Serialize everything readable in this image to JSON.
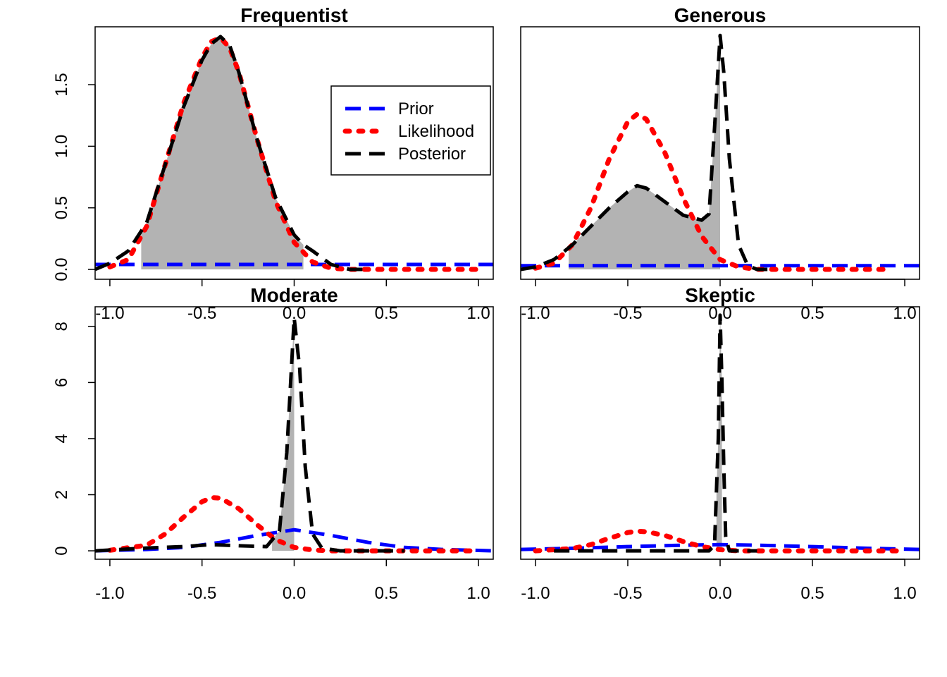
{
  "legend": {
    "prior_label": "Prior",
    "likelihood_label": "Likelihood",
    "posterior_label": "Posterior"
  },
  "colors": {
    "prior": "#0000ff",
    "likelihood": "#ff0000",
    "posterior": "#000000",
    "shade": "#b3b3b3"
  },
  "chart_data": [
    {
      "type": "line",
      "title": "Frequentist",
      "xlim": [
        -1.08,
        1.08
      ],
      "ylim": [
        -0.08,
        1.97
      ],
      "xticks": [
        -1.0,
        -0.5,
        0.0,
        0.5,
        1.0
      ],
      "xtick_labels": [
        "-1.0",
        "-0.5",
        "0.0",
        "0.5",
        "1.0"
      ],
      "yticks": [
        0.0,
        0.5,
        1.0,
        1.5
      ],
      "ytick_labels": [
        "0.0",
        "0.5",
        "1.0",
        "1.5"
      ],
      "legend": "top-right",
      "shade_interval": [
        -0.83,
        0.05
      ],
      "series": [
        {
          "name": "Prior",
          "x": [
            -1.08,
            1.08
          ],
          "y": [
            0.04,
            0.04
          ]
        },
        {
          "name": "Likelihood",
          "x": [
            -1.0,
            -0.9,
            -0.8,
            -0.7,
            -0.6,
            -0.5,
            -0.45,
            -0.4,
            -0.35,
            -0.3,
            -0.2,
            -0.1,
            0.0,
            0.1,
            0.2,
            0.3,
            0.5,
            0.7,
            0.9,
            1.0
          ],
          "y": [
            0.02,
            0.08,
            0.35,
            0.85,
            1.35,
            1.72,
            1.85,
            1.88,
            1.8,
            1.6,
            1.05,
            0.55,
            0.22,
            0.06,
            0.01,
            0.0,
            0.0,
            0.0,
            0.0,
            0.0
          ]
        },
        {
          "name": "Posterior",
          "x": [
            -1.08,
            -1.0,
            -0.9,
            -0.8,
            -0.7,
            -0.6,
            -0.5,
            -0.45,
            -0.4,
            -0.35,
            -0.3,
            -0.2,
            -0.1,
            0.0,
            0.05,
            0.1,
            0.2,
            0.3,
            0.4
          ],
          "y": [
            0.0,
            0.05,
            0.15,
            0.38,
            0.85,
            1.32,
            1.7,
            1.83,
            1.89,
            1.82,
            1.6,
            1.05,
            0.58,
            0.28,
            0.2,
            0.15,
            0.04,
            0.0,
            0.0
          ]
        }
      ]
    },
    {
      "type": "line",
      "title": "Generous",
      "xlim": [
        -1.08,
        1.08
      ],
      "ylim": [
        -0.08,
        1.97
      ],
      "xticks": [
        -1.0,
        -0.5,
        0.0,
        0.5,
        1.0
      ],
      "xtick_labels": [
        "-1.0",
        "-0.5",
        "0.0",
        "0.5",
        "1.0"
      ],
      "yticks": [],
      "ytick_labels": [],
      "shade_interval": [
        -0.82,
        0.0
      ],
      "series": [
        {
          "name": "Prior",
          "x": [
            -1.08,
            1.08
          ],
          "y": [
            0.03,
            0.03
          ]
        },
        {
          "name": "Likelihood",
          "x": [
            -1.0,
            -0.9,
            -0.8,
            -0.7,
            -0.6,
            -0.5,
            -0.45,
            -0.4,
            -0.3,
            -0.2,
            -0.1,
            0.0,
            0.1,
            0.2,
            0.3,
            0.5,
            0.7,
            0.9
          ],
          "y": [
            0.01,
            0.05,
            0.2,
            0.5,
            0.9,
            1.2,
            1.26,
            1.22,
            0.95,
            0.58,
            0.27,
            0.08,
            0.02,
            0.0,
            0.0,
            0.0,
            0.0,
            0.0
          ]
        },
        {
          "name": "Posterior",
          "x": [
            -1.08,
            -1.0,
            -0.9,
            -0.8,
            -0.7,
            -0.6,
            -0.5,
            -0.45,
            -0.4,
            -0.3,
            -0.2,
            -0.1,
            -0.06,
            -0.03,
            0.0,
            0.02,
            0.05,
            0.1,
            0.15,
            0.2,
            0.3
          ],
          "y": [
            0.0,
            0.02,
            0.08,
            0.2,
            0.35,
            0.5,
            0.63,
            0.68,
            0.66,
            0.55,
            0.44,
            0.4,
            0.45,
            1.15,
            1.9,
            1.6,
            0.9,
            0.2,
            0.03,
            0.0,
            0.0
          ]
        }
      ]
    },
    {
      "type": "line",
      "title": "Moderate",
      "xlim": [
        -1.08,
        1.08
      ],
      "ylim": [
        -0.3,
        8.7
      ],
      "xticks": [
        -1.0,
        -0.5,
        0.0,
        0.5,
        1.0
      ],
      "xtick_labels": [
        "-1.0",
        "-0.5",
        "0.0",
        "0.5",
        "1.0"
      ],
      "yticks": [
        0,
        2,
        4,
        6,
        8
      ],
      "ytick_labels": [
        "0",
        "2",
        "4",
        "6",
        "8"
      ],
      "shade_interval": [
        -0.12,
        0.0
      ],
      "series": [
        {
          "name": "Prior",
          "x": [
            -1.08,
            -0.8,
            -0.6,
            -0.4,
            -0.2,
            0.0,
            0.2,
            0.4,
            0.6,
            0.8,
            1.08
          ],
          "y": [
            0.0,
            0.05,
            0.12,
            0.3,
            0.55,
            0.75,
            0.55,
            0.3,
            0.12,
            0.05,
            0.0
          ]
        },
        {
          "name": "Likelihood",
          "x": [
            -1.0,
            -0.8,
            -0.7,
            -0.6,
            -0.5,
            -0.45,
            -0.4,
            -0.3,
            -0.2,
            -0.1,
            0.0,
            0.1,
            0.2,
            0.3,
            0.5,
            0.7,
            0.9,
            1.0
          ],
          "y": [
            0.02,
            0.2,
            0.6,
            1.2,
            1.75,
            1.9,
            1.88,
            1.5,
            0.92,
            0.4,
            0.12,
            0.03,
            0.0,
            0.0,
            0.0,
            0.0,
            0.0,
            0.0
          ]
        },
        {
          "name": "Posterior",
          "x": [
            -1.08,
            -0.8,
            -0.6,
            -0.45,
            -0.3,
            -0.15,
            -0.08,
            -0.04,
            0.0,
            0.03,
            0.06,
            0.1,
            0.15,
            0.25,
            0.4,
            0.6
          ],
          "y": [
            0.0,
            0.1,
            0.15,
            0.22,
            0.18,
            0.15,
            0.7,
            3.5,
            8.3,
            6.5,
            3.0,
            0.6,
            0.1,
            0.0,
            0.0,
            0.0
          ]
        }
      ]
    },
    {
      "type": "line",
      "title": "Skeptic",
      "xlim": [
        -1.08,
        1.08
      ],
      "ylim": [
        -0.3,
        8.7
      ],
      "xticks": [
        -1.0,
        -0.5,
        0.0,
        0.5,
        1.0
      ],
      "xtick_labels": [
        "-1.0",
        "-0.5",
        "0.0",
        "0.5",
        "1.0"
      ],
      "yticks": [],
      "ytick_labels": [],
      "shade_interval": [
        -0.02,
        0.01
      ],
      "series": [
        {
          "name": "Prior",
          "x": [
            -1.08,
            -0.8,
            -0.5,
            -0.2,
            0.0,
            0.2,
            0.5,
            0.8,
            1.08
          ],
          "y": [
            0.05,
            0.09,
            0.15,
            0.2,
            0.22,
            0.2,
            0.15,
            0.09,
            0.05
          ]
        },
        {
          "name": "Likelihood",
          "x": [
            -1.0,
            -0.8,
            -0.7,
            -0.6,
            -0.5,
            -0.45,
            -0.4,
            -0.3,
            -0.2,
            -0.1,
            0.0,
            0.1,
            0.2,
            0.4,
            0.6,
            0.8,
            1.0
          ],
          "y": [
            0.0,
            0.08,
            0.22,
            0.45,
            0.65,
            0.7,
            0.68,
            0.55,
            0.33,
            0.15,
            0.04,
            0.0,
            0.0,
            0.0,
            0.0,
            0.0,
            0.0
          ]
        },
        {
          "name": "Posterior",
          "x": [
            -0.9,
            -0.2,
            -0.06,
            -0.03,
            -0.01,
            0.0,
            0.01,
            0.02,
            0.03,
            0.05,
            0.2
          ],
          "y": [
            0.0,
            0.0,
            0.0,
            0.2,
            4.0,
            8.4,
            6.0,
            3.0,
            0.5,
            0.0,
            0.0
          ]
        }
      ]
    }
  ]
}
